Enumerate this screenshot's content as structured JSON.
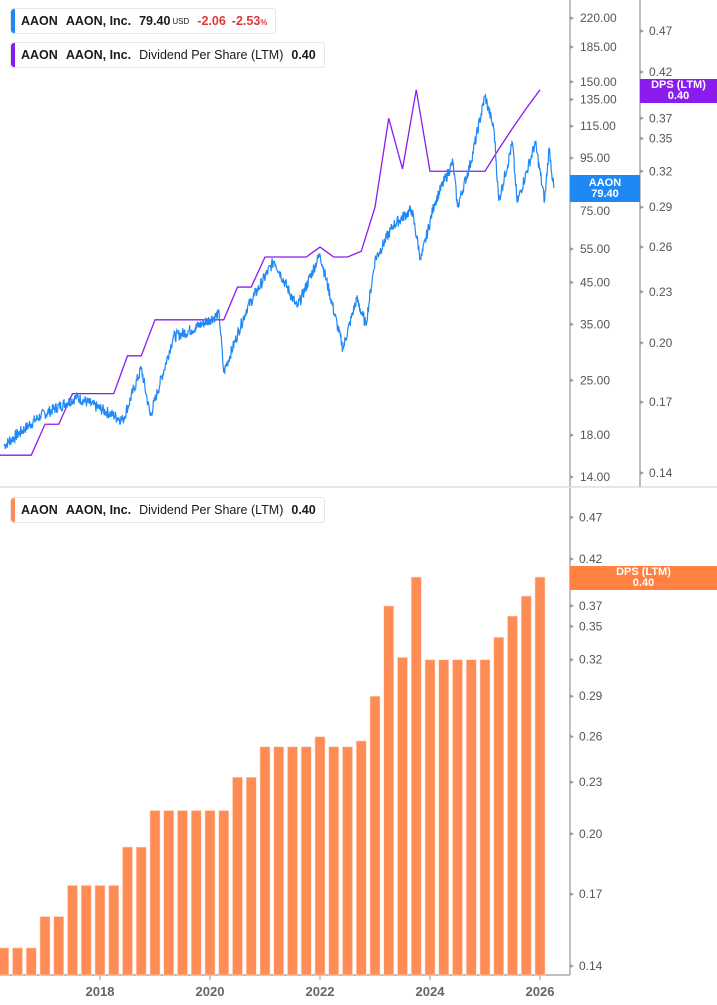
{
  "legend_price": {
    "ticker": "AAON",
    "name": "AAON, Inc.",
    "price": "79.40",
    "currency": "USD",
    "change": "-2.06",
    "change_pct": "-2.53",
    "pct_sign": "%"
  },
  "legend_dps_top": {
    "ticker": "AAON",
    "name": "AAON, Inc.",
    "metric": "Dividend Per Share (LTM)",
    "value": "0.40"
  },
  "legend_dps_bottom": {
    "ticker": "AAON",
    "name": "AAON, Inc.",
    "metric": "Dividend Per Share (LTM)",
    "value": "0.40"
  },
  "tags": {
    "price": {
      "line1": "AAON",
      "line2": "79.40"
    },
    "dps_top": {
      "line1": "DPS (LTM)",
      "line2": "0.40"
    },
    "dps_bottom": {
      "line1": "DPS (LTM)",
      "line2": "0.40"
    }
  },
  "colors": {
    "price": "#1e88f5",
    "dps_line": "#8a1cf0",
    "dps_bar": "#ff8c55",
    "dps_tag": "#ff8040",
    "negative": "#e0373a"
  },
  "chart_data": [
    {
      "type": "line",
      "scale": "log",
      "series": [
        {
          "name": "AAON",
          "axis": "left",
          "points": [
            [
              "2016-03",
              16.9
            ],
            [
              "2016-11",
              20.2
            ],
            [
              "2017-07",
              22.6
            ],
            [
              "2018-05",
              19.7
            ],
            [
              "2018-09",
              26.9
            ],
            [
              "2018-11",
              20.2
            ],
            [
              "2019-04",
              32.4
            ],
            [
              "2019-08",
              33.9
            ],
            [
              "2020-02",
              37.2
            ],
            [
              "2020-03",
              26.2
            ],
            [
              "2020-08",
              38.4
            ],
            [
              "2021-02",
              51.3
            ],
            [
              "2021-07",
              38.7
            ],
            [
              "2021-12",
              53.4
            ],
            [
              "2022-05",
              30.3
            ],
            [
              "2022-08",
              40.8
            ],
            [
              "2022-10",
              34.9
            ],
            [
              "2022-12",
              51.6
            ],
            [
              "2023-04",
              63.5
            ],
            [
              "2023-08",
              69.7
            ],
            [
              "2023-10",
              51.6
            ],
            [
              "2024-01",
              72.6
            ],
            [
              "2024-05",
              92.8
            ],
            [
              "2024-06",
              70.8
            ],
            [
              "2024-09",
              93.6
            ],
            [
              "2024-12",
              138
            ],
            [
              "2025-02",
              112
            ],
            [
              "2025-03",
              73.4
            ],
            [
              "2025-06",
              104
            ],
            [
              "2025-07",
              72.6
            ],
            [
              "2025-11",
              104
            ],
            [
              "2026-01",
              73.4
            ],
            [
              "2026-02",
              101
            ],
            [
              "2026-03",
              79.4
            ]
          ]
        },
        {
          "name": "DPS (LTM)",
          "axis": "right",
          "source": "dps"
        }
      ],
      "y_left_ticks": [
        "220.00",
        "185.00",
        "150.00",
        "135.00",
        "115.00",
        "95.00",
        "75.00",
        "55.00",
        "45.00",
        "35.00",
        "25.00",
        "18.00",
        "14.00"
      ],
      "y_right_ticks": [
        "0.47",
        "0.42",
        "0.37",
        "0.35",
        "0.32",
        "0.29",
        "0.26",
        "0.23",
        "0.20",
        "0.17",
        "0.14"
      ]
    },
    {
      "type": "bar",
      "scale": "log",
      "name": "DPS (LTM)",
      "dates": [
        "2016-03",
        "2016-06",
        "2016-09",
        "2016-12",
        "2017-03",
        "2017-06",
        "2017-09",
        "2017-12",
        "2018-03",
        "2018-06",
        "2018-09",
        "2018-12",
        "2019-03",
        "2019-06",
        "2019-09",
        "2019-12",
        "2020-03",
        "2020-06",
        "2020-09",
        "2020-12",
        "2021-03",
        "2021-06",
        "2021-09",
        "2021-12",
        "2022-03",
        "2022-06",
        "2022-09",
        "2022-12",
        "2023-03",
        "2023-06",
        "2023-09",
        "2023-12",
        "2024-03",
        "2024-06",
        "2024-09",
        "2024-12",
        "2025-03",
        "2025-06",
        "2025-09",
        "2025-12"
      ],
      "values": [
        0.147,
        0.147,
        0.147,
        0.16,
        0.16,
        0.174,
        0.174,
        0.174,
        0.174,
        0.193,
        0.193,
        0.213,
        0.213,
        0.213,
        0.213,
        0.213,
        0.213,
        0.233,
        0.233,
        0.253,
        0.253,
        0.253,
        0.253,
        0.26,
        0.253,
        0.253,
        0.257,
        0.29,
        0.37,
        0.322,
        0.4,
        0.32,
        0.32,
        0.32,
        0.32,
        0.32,
        0.34,
        0.36,
        0.38,
        0.4
      ],
      "y_ticks": [
        "0.47",
        "0.42",
        "0.37",
        "0.35",
        "0.32",
        "0.29",
        "0.26",
        "0.23",
        "0.20",
        "0.17",
        "0.14"
      ],
      "x_ticks": [
        "2018",
        "2020",
        "2022",
        "2024",
        "2026"
      ]
    }
  ]
}
